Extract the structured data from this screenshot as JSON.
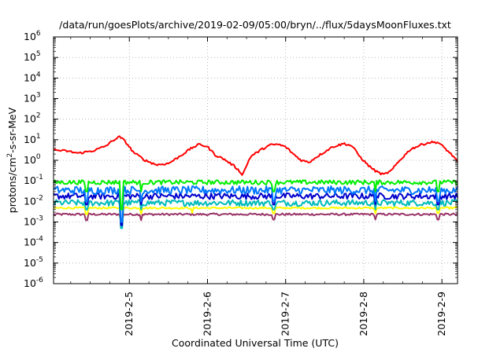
{
  "chart_data": {
    "type": "line",
    "title": "/data/run/goesPlots/archive/2019-02-09/05:00/bryn/../flux/5daysMoonFluxes.txt",
    "xlabel": "Coordinated Universal Time (UTC)",
    "ylabel": {
      "base": "protons/cm",
      "sup": "2",
      "rest": "-s-sr-MeV"
    },
    "yscale": "log",
    "ylim_exp": [
      -6,
      6
    ],
    "y_ticks": [
      {
        "exp": -6
      },
      {
        "exp": -5
      },
      {
        "exp": -4
      },
      {
        "exp": -3
      },
      {
        "exp": -2
      },
      {
        "exp": -1
      },
      {
        "exp": 0
      },
      {
        "exp": 1
      },
      {
        "exp": 2
      },
      {
        "exp": 3
      },
      {
        "exp": 4
      },
      {
        "exp": 5
      },
      {
        "exp": 6
      }
    ],
    "x_days_range": [
      4.03,
      9.2
    ],
    "x_ticks": [
      {
        "day": 5,
        "label": "2019-2-5"
      },
      {
        "day": 6,
        "label": "2019-2-6"
      },
      {
        "day": 7,
        "label": "2019-2-7"
      },
      {
        "day": 8,
        "label": "2019-2-8"
      },
      {
        "day": 9,
        "label": "2019-2-9"
      }
    ],
    "grid": true,
    "series": [
      {
        "color": "#993366",
        "base": 0.00235,
        "noise": 0.12,
        "dips": [
          [
            4.45,
            0.0012
          ],
          [
            4.9,
            0.0011
          ],
          [
            5.15,
            0.0012
          ],
          [
            6.85,
            0.0013
          ],
          [
            8.15,
            0.0013
          ],
          [
            8.95,
            0.0013
          ]
        ]
      },
      {
        "color": "#ffff00",
        "base": 0.0048,
        "noise": 0.1,
        "dips": [
          [
            4.45,
            0.0024
          ],
          [
            4.9,
            0.0006
          ],
          [
            5.15,
            0.0025
          ],
          [
            5.8,
            0.0028
          ],
          [
            6.85,
            0.0026
          ],
          [
            8.15,
            0.0026
          ],
          [
            8.95,
            0.0027
          ]
        ]
      },
      {
        "color": "#00bbbb",
        "base": 0.0085,
        "noise": 0.35,
        "dips": [
          [
            4.45,
            0.004
          ],
          [
            4.9,
            0.0005
          ],
          [
            5.15,
            0.004
          ],
          [
            6.85,
            0.004
          ],
          [
            8.15,
            0.004
          ],
          [
            8.95,
            0.004
          ]
        ]
      },
      {
        "color": "#0000cc",
        "base": 0.018,
        "noise": 0.35,
        "dips": [
          [
            4.45,
            0.007
          ],
          [
            4.9,
            0.0007
          ],
          [
            5.15,
            0.007
          ],
          [
            6.85,
            0.007
          ],
          [
            8.15,
            0.007
          ],
          [
            8.95,
            0.007
          ]
        ]
      },
      {
        "color": "#0077ff",
        "base": 0.035,
        "noise": 0.45,
        "dips": [
          [
            4.45,
            0.01
          ],
          [
            4.9,
            0.001
          ],
          [
            5.15,
            0.01
          ],
          [
            6.85,
            0.01
          ],
          [
            8.15,
            0.01
          ],
          [
            8.95,
            0.01
          ]
        ]
      },
      {
        "color": "#00ee00",
        "base": 0.085,
        "noise": 0.25,
        "dips": [
          [
            4.45,
            0.03
          ],
          [
            4.9,
            0.004
          ],
          [
            5.15,
            0.03
          ],
          [
            6.85,
            0.03
          ],
          [
            8.15,
            0.03
          ],
          [
            8.95,
            0.03
          ]
        ]
      },
      {
        "color": "#ff0000",
        "keyframes": [
          [
            4.03,
            3.2
          ],
          [
            4.2,
            2.8
          ],
          [
            4.35,
            2.2
          ],
          [
            4.55,
            3.0
          ],
          [
            4.7,
            5.0
          ],
          [
            4.82,
            11
          ],
          [
            4.88,
            14
          ],
          [
            4.95,
            8.0
          ],
          [
            5.05,
            2.5
          ],
          [
            5.2,
            1.0
          ],
          [
            5.35,
            0.6
          ],
          [
            5.5,
            0.7
          ],
          [
            5.6,
            1.2
          ],
          [
            5.8,
            4.0
          ],
          [
            5.9,
            6.0
          ],
          [
            6.0,
            4.5
          ],
          [
            6.1,
            1.8
          ],
          [
            6.2,
            1.2
          ],
          [
            6.35,
            0.5
          ],
          [
            6.45,
            0.2
          ],
          [
            6.55,
            1.5
          ],
          [
            6.7,
            3.5
          ],
          [
            6.8,
            5.5
          ],
          [
            6.9,
            6.0
          ],
          [
            7.0,
            4.5
          ],
          [
            7.1,
            2.0
          ],
          [
            7.2,
            1.0
          ],
          [
            7.3,
            0.8
          ],
          [
            7.4,
            1.5
          ],
          [
            7.6,
            4.5
          ],
          [
            7.75,
            6.5
          ],
          [
            7.85,
            5.0
          ],
          [
            7.95,
            1.5
          ],
          [
            8.05,
            0.6
          ],
          [
            8.15,
            0.3
          ],
          [
            8.25,
            0.2
          ],
          [
            8.35,
            0.3
          ],
          [
            8.45,
            0.9
          ],
          [
            8.6,
            3.5
          ],
          [
            8.75,
            6.0
          ],
          [
            8.85,
            7.5
          ],
          [
            8.95,
            7.5
          ],
          [
            9.05,
            3.5
          ],
          [
            9.15,
            1.5
          ],
          [
            9.2,
            0.8
          ]
        ],
        "noise": 0.12
      }
    ]
  }
}
